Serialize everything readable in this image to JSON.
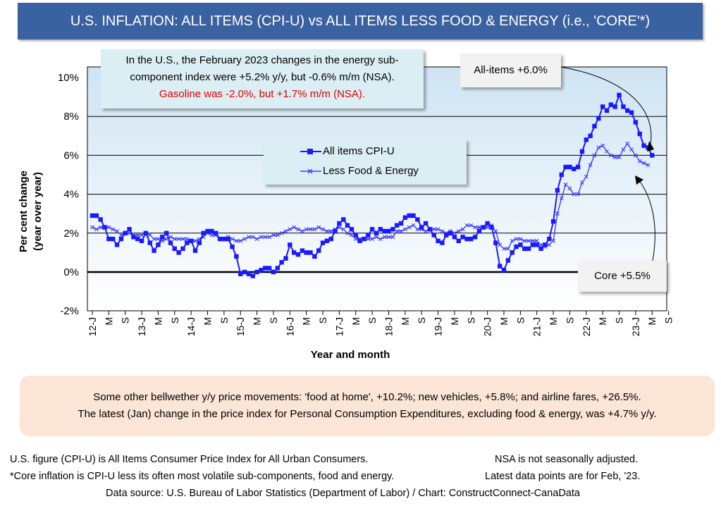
{
  "title": "U.S. INFLATION: ALL ITEMS (CPI-U) vs ALL ITEMS LESS FOOD & ENERGY (i.e., 'CORE'*)",
  "note": {
    "line1": "In the U.S., the February 2023 changes in the energy sub-",
    "line2": "component index were +5.2% y/y, but -0.6% m/m (NSA).",
    "line3": "Gasoline was -2.0%, but +1.7% m/m (NSA)."
  },
  "callouts": {
    "all_items": "All-items +6.0%",
    "core": "Core +5.5%"
  },
  "bottom_note": {
    "line1": "Some other bellwether y/y price movements: 'food at home', +10.2%; new vehicles, +5.8%; and airline fares, +26.5%.",
    "line2": "The latest (Jan) change in the price index for Personal Consumption Expenditures, excluding food & energy, was +4.7% y/y."
  },
  "footnotes": {
    "left1": "U.S. figure (CPI-U) is All Items Consumer Price Index for All Urban Consumers.",
    "right1": "NSA is not seasonally adjusted.",
    "left2": "*Core inflation is CPI-U less its often most volatile sub-components, food and energy.",
    "right2": "Latest data points are for Feb, '23.",
    "source": "Data source: U.S. Bureau of Labor Statistics (Department of Labor) / Chart: ConstructConnect-CanaData"
  },
  "colors": {
    "title_bg": "#3a61a0",
    "series_all": "#1a1aff",
    "series_core": "#4040ff",
    "note_bg": "#dbeef4",
    "bottom_bg": "#fbe5d6",
    "highlight_red": "#e00000"
  },
  "chart_data": {
    "type": "line",
    "xlabel": "Year and month",
    "ylabel": "Per cent change (year over year)",
    "ylabel_lines": [
      "Per cent change",
      "(year over year)"
    ],
    "ylim": [
      -2,
      10
    ],
    "yticks": [
      -2,
      0,
      2,
      4,
      6,
      8,
      10
    ],
    "ytick_labels": [
      "-2%",
      "0%",
      "2%",
      "4%",
      "6%",
      "8%",
      "10%"
    ],
    "xtick_labels": [
      "12-J",
      "M",
      "S",
      "13-J",
      "M",
      "S",
      "14-J",
      "M",
      "S",
      "15-J",
      "M",
      "S",
      "16-J",
      "M",
      "S",
      "17-J",
      "M",
      "S",
      "18-J",
      "M",
      "S",
      "19-J",
      "M",
      "S",
      "20-J",
      "M",
      "S",
      "21-J",
      "M",
      "S",
      "22-J",
      "M",
      "S",
      "23-J",
      "M",
      "S"
    ],
    "legend_position": "center",
    "grid": "horizontal",
    "start": "2012-01",
    "end": "2023-02",
    "series": [
      {
        "name": "All items CPI-U",
        "marker": "square",
        "values": [
          2.9,
          2.9,
          2.7,
          2.3,
          1.7,
          1.7,
          1.4,
          1.7,
          2.0,
          2.2,
          1.8,
          1.7,
          1.6,
          2.0,
          1.5,
          1.1,
          1.4,
          1.8,
          2.0,
          1.5,
          1.2,
          1.0,
          1.2,
          1.5,
          1.6,
          1.1,
          1.5,
          2.0,
          2.1,
          2.1,
          2.0,
          1.7,
          1.7,
          1.7,
          1.3,
          0.8,
          -0.1,
          0.0,
          -0.1,
          -0.2,
          0.0,
          0.1,
          0.2,
          0.2,
          0.0,
          0.2,
          0.5,
          0.7,
          1.4,
          1.0,
          0.9,
          1.1,
          1.0,
          1.0,
          0.8,
          1.1,
          1.5,
          1.6,
          1.7,
          2.1,
          2.5,
          2.7,
          2.4,
          2.2,
          1.9,
          1.6,
          1.7,
          1.9,
          2.2,
          2.0,
          2.2,
          2.1,
          2.1,
          2.2,
          2.4,
          2.5,
          2.8,
          2.9,
          2.9,
          2.7,
          2.3,
          2.5,
          2.2,
          1.9,
          1.6,
          1.5,
          1.9,
          2.0,
          1.8,
          1.6,
          1.8,
          1.7,
          1.7,
          1.8,
          2.1,
          2.3,
          2.5,
          2.3,
          1.5,
          0.3,
          0.1,
          0.6,
          1.0,
          1.3,
          1.4,
          1.2,
          1.2,
          1.4,
          1.4,
          1.2,
          1.4,
          1.7,
          2.6,
          4.2,
          5.0,
          5.4,
          5.4,
          5.3,
          5.4,
          6.2,
          6.8,
          7.0,
          7.5,
          7.9,
          8.5,
          8.3,
          8.6,
          8.5,
          9.1,
          8.5,
          8.3,
          8.2,
          7.7,
          7.1,
          6.5,
          6.4,
          6.0
        ]
      },
      {
        "name": "Less Food & Energy",
        "marker": "x",
        "values": [
          2.3,
          2.2,
          2.3,
          2.3,
          2.3,
          2.2,
          2.1,
          1.9,
          2.0,
          2.0,
          1.9,
          1.9,
          1.9,
          2.0,
          1.9,
          1.7,
          1.7,
          1.6,
          1.7,
          1.8,
          1.7,
          1.7,
          1.7,
          1.7,
          1.6,
          1.6,
          1.7,
          1.8,
          2.0,
          1.9,
          1.9,
          1.7,
          1.7,
          1.8,
          1.7,
          1.6,
          1.6,
          1.7,
          1.8,
          1.8,
          1.7,
          1.8,
          1.8,
          1.8,
          1.9,
          1.9,
          2.0,
          2.1,
          2.2,
          2.3,
          2.2,
          2.1,
          2.2,
          2.2,
          2.2,
          2.3,
          2.2,
          2.1,
          2.1,
          2.2,
          2.3,
          2.2,
          2.0,
          1.9,
          1.7,
          1.7,
          1.7,
          1.7,
          1.7,
          1.8,
          1.7,
          1.8,
          1.8,
          1.8,
          2.1,
          2.1,
          2.2,
          2.3,
          2.4,
          2.2,
          2.2,
          2.1,
          2.2,
          2.2,
          2.2,
          2.1,
          2.0,
          2.1,
          2.0,
          2.1,
          2.2,
          2.4,
          2.4,
          2.3,
          2.3,
          2.3,
          2.3,
          2.4,
          2.1,
          1.4,
          1.2,
          1.2,
          1.6,
          1.7,
          1.7,
          1.6,
          1.6,
          1.6,
          1.6,
          1.4,
          1.3,
          1.4,
          1.6,
          3.0,
          3.8,
          4.5,
          4.3,
          4.0,
          4.0,
          4.6,
          4.9,
          5.5,
          6.0,
          6.4,
          6.5,
          6.2,
          6.0,
          5.9,
          5.9,
          6.3,
          6.6,
          6.3,
          6.0,
          5.7,
          5.6,
          5.5
        ]
      }
    ]
  }
}
